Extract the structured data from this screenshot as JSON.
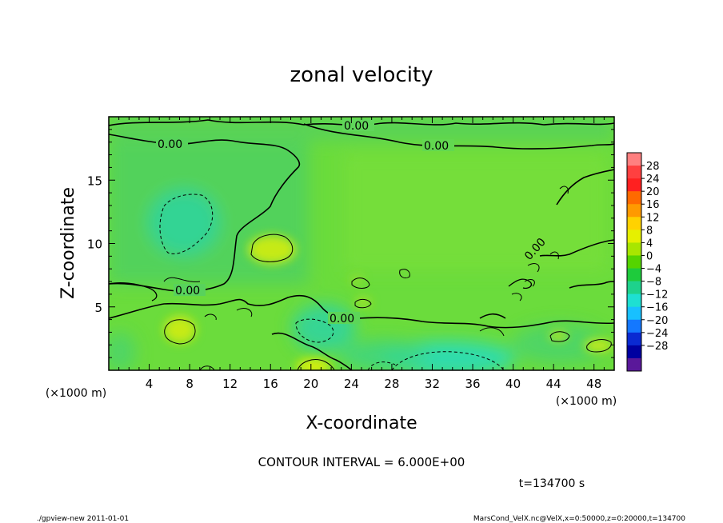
{
  "chart_data": {
    "type": "heatmap",
    "title": "zonal velocity",
    "xlabel": "X-coordinate",
    "ylabel": "Z-coordinate",
    "x_unit": "(×1000 m)",
    "z_unit": "(×1000 m)",
    "x_ticks": [
      "4",
      "8",
      "12",
      "16",
      "20",
      "24",
      "28",
      "32",
      "36",
      "40",
      "44",
      "48"
    ],
    "y_ticks": [
      "5",
      "10",
      "15"
    ],
    "xlim": [
      0,
      50
    ],
    "ylim": [
      0,
      20
    ],
    "colorbar": {
      "labels": [
        "28",
        "24",
        "20",
        "16",
        "12",
        "8",
        "4",
        "0",
        "−4",
        "−8",
        "−12",
        "−16",
        "−20",
        "−24",
        "−28"
      ],
      "colors": [
        "#ff8080",
        "#ff4040",
        "#ff2020",
        "#ff6a00",
        "#ff9a00",
        "#ffd200",
        "#e6f000",
        "#a8e600",
        "#55d400",
        "#1ecb3c",
        "#1ed28c",
        "#1ee0d2",
        "#18c0ff",
        "#1478ff",
        "#0a2ad2",
        "#0000a0",
        "#5a189a"
      ]
    },
    "contour_labels": [
      "0.00",
      "0.00",
      "0.00",
      "0.00",
      "0.00",
      "0.00"
    ],
    "contour_interval_text": "CONTOUR INTERVAL = 6.000E+00",
    "time_text": "t=134700 s",
    "features": [
      {
        "kind": "max",
        "x": 15.9,
        "z": 9.5
      },
      {
        "kind": "max",
        "x": 5.9,
        "z": 3.0
      },
      {
        "kind": "max",
        "x": 20.5,
        "z": 0.4
      },
      {
        "kind": "max",
        "x": 47.7,
        "z": 2.0
      },
      {
        "kind": "max",
        "x": 44.6,
        "z": 2.9
      },
      {
        "kind": "max",
        "x": 24.4,
        "z": 5.3
      },
      {
        "kind": "min",
        "x": 7.6,
        "z": 11.8
      },
      {
        "kind": "min",
        "x": 35.5,
        "z": 0.4
      },
      {
        "kind": "min",
        "x": 21.2,
        "z": 3.2
      },
      {
        "kind": "min",
        "x": 30.3,
        "z": 0.8
      }
    ]
  },
  "footer": {
    "left": "./gpview-new  2011-01-01",
    "right": "MarsCond_VelX.nc@VelX,x=0:50000,z=0:20000,t=134700"
  }
}
